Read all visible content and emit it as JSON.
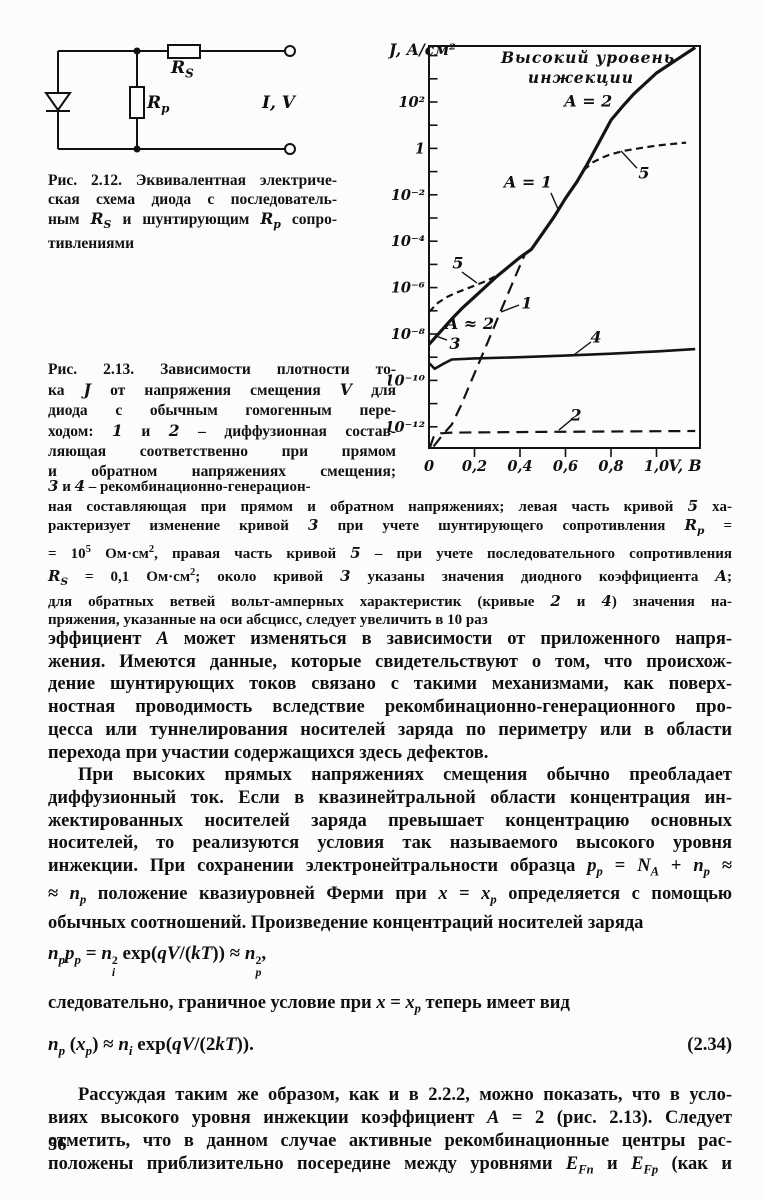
{
  "page": {
    "number": "56"
  },
  "figure_2_12": {
    "labels": {
      "rs": "R<sub>S</sub>",
      "rp": "R<sub>p</sub>",
      "iv": "I, V"
    },
    "caption_lines": [
      "Рис. 2.12. Эквивалентная электриче-",
      "ская схема диода с последователь-",
      "ным <i>R<sub>S</sub></i> и шунтирующим <i>R<sub>p</sub></i> сопро-",
      "тивлениями"
    ]
  },
  "figure_2_13": {
    "caption_lines_narrow": [
      "Рис. 2.13. Зависимости плотности то-",
      "ка <i>J</i> от напряжения смещения <i>V</i> для",
      "диода с обычным гомогенным пере-",
      "ходом: <i>1</i> и <i>2</i> – диффузионная состав-",
      "ляющая соответственно при прямом",
      "и обратном напряжениях смещения;"
    ],
    "caption_lines_wide": [
      "<i>3</i> и <i>4</i> – рекомбинационно-генерацион-",
      "ная составляющая при прямом и обратном напряжениях; левая часть кривой <i>5</i> ха-",
      "рактеризует изменение кривой <i>3</i> при учете шунтирующего сопротивления <i>R<sub>p</sub></i> =",
      "= 10<sup>5</sup> Ом·см<sup>2</sup>, правая часть кривой <i>5</i> – при учете последовательного сопротивления",
      "<i>R<sub>S</sub></i> = 0,1 Ом·см<sup>2</sup>; около кривой <i>3</i> указаны значения диодного коэффициента <i>A</i>;",
      "для обратных ветвей вольт-амперных характеристик (кривые <i>2</i> и <i>4</i>) значения на-",
      "пряжения, указанные на оси абсцисс, следует увеличить в 10 раз"
    ]
  },
  "chart_data": {
    "type": "line",
    "title_lines": [
      "Высокий уровень",
      "инжекции"
    ],
    "ylabel": "J, А/см²",
    "xlabel": "V, В",
    "xlim": [
      0,
      1.19
    ],
    "ylim_log10": [
      -12.9,
      4.4
    ],
    "y_tick_exponent_range": [
      4,
      -12
    ],
    "x_ticks": [
      {
        "v": 0.0,
        "label": "0"
      },
      {
        "v": 0.2,
        "label": "0,2"
      },
      {
        "v": 0.4,
        "label": "0,4"
      },
      {
        "v": 0.6,
        "label": "0,6"
      },
      {
        "v": 0.8,
        "label": "0,8"
      },
      {
        "v": 1.0,
        "label": "1,0"
      }
    ],
    "y_ticks": [
      {
        "exp": 2,
        "label": "10²"
      },
      {
        "exp": 0,
        "label": "1"
      },
      {
        "exp": -2,
        "label": "10⁻²"
      },
      {
        "exp": -4,
        "label": "10⁻⁴"
      },
      {
        "exp": -6,
        "label": "10⁻⁶"
      },
      {
        "exp": -8,
        "label": "10⁻⁸"
      },
      {
        "exp": -10,
        "label": "10⁻¹⁰"
      },
      {
        "exp": -12,
        "label": "10⁻¹²"
      }
    ],
    "series": [
      {
        "name": "curve-1-diffusion-forward",
        "label": "1",
        "style": "dash-long",
        "width": 2.2,
        "points": [
          [
            0.02,
            -12.85
          ],
          [
            0.06,
            -12.35
          ],
          [
            0.1,
            -11.9
          ],
          [
            0.14,
            -11.1
          ],
          [
            0.2,
            -9.7
          ],
          [
            0.26,
            -8.3
          ],
          [
            0.32,
            -6.9
          ],
          [
            0.38,
            -5.5
          ],
          [
            0.42,
            -4.6
          ]
        ]
      },
      {
        "name": "curve-2-diffusion-reverse",
        "label": "2",
        "style": "dash-long",
        "width": 2.2,
        "points": [
          [
            0.004,
            -12.9
          ],
          [
            0.02,
            -12.45
          ],
          [
            0.05,
            -12.28
          ],
          [
            0.1,
            -12.25
          ],
          [
            0.5,
            -12.22
          ],
          [
            1.17,
            -12.18
          ]
        ]
      },
      {
        "name": "curve-3-recgen-forward-main",
        "label": "3",
        "style": "solid",
        "width": 3.2,
        "points": [
          [
            0,
            -8.45
          ],
          [
            0.05,
            -7.9
          ],
          [
            0.1,
            -7.35
          ],
          [
            0.15,
            -6.85
          ],
          [
            0.2,
            -6.4
          ],
          [
            0.25,
            -5.95
          ],
          [
            0.3,
            -5.5
          ],
          [
            0.35,
            -5.1
          ],
          [
            0.4,
            -4.7
          ],
          [
            0.45,
            -4.35
          ],
          [
            0.5,
            -3.65
          ],
          [
            0.55,
            -2.95
          ],
          [
            0.6,
            -2.15
          ],
          [
            0.65,
            -1.44
          ],
          [
            0.7,
            -0.6
          ],
          [
            0.75,
            0.3
          ],
          [
            0.8,
            1.22
          ],
          [
            0.85,
            1.8
          ],
          [
            0.9,
            2.35
          ],
          [
            1.0,
            3.25
          ],
          [
            1.1,
            3.9
          ],
          [
            1.17,
            4.35
          ]
        ]
      },
      {
        "name": "curve-4-recgen-reverse",
        "label": "4",
        "style": "solid",
        "width": 2.6,
        "points": [
          [
            0,
            -9.25
          ],
          [
            0.025,
            -9.5
          ],
          [
            0.06,
            -9.3
          ],
          [
            0.1,
            -9.1
          ],
          [
            0.2,
            -9.05
          ],
          [
            0.4,
            -9.0
          ],
          [
            0.6,
            -8.93
          ],
          [
            0.8,
            -8.85
          ],
          [
            1.0,
            -8.75
          ],
          [
            1.17,
            -8.65
          ]
        ]
      },
      {
        "name": "curve-5-left-shunt",
        "label": "5",
        "style": "dash-short",
        "width": 2.2,
        "points": [
          [
            0,
            -7.05
          ],
          [
            0.04,
            -6.65
          ],
          [
            0.08,
            -6.4
          ],
          [
            0.12,
            -6.22
          ],
          [
            0.16,
            -6.07
          ],
          [
            0.2,
            -5.92
          ],
          [
            0.25,
            -5.72
          ],
          [
            0.31,
            -5.43
          ]
        ]
      },
      {
        "name": "curve-5-right-series",
        "label": "5",
        "style": "dash-short",
        "width": 2.2,
        "points": [
          [
            0.68,
            -0.93
          ],
          [
            0.72,
            -0.6
          ],
          [
            0.76,
            -0.4
          ],
          [
            0.8,
            -0.25
          ],
          [
            0.86,
            -0.1
          ],
          [
            0.92,
            0.0
          ],
          [
            1.0,
            0.12
          ],
          [
            1.06,
            0.18
          ],
          [
            1.13,
            0.25
          ]
        ]
      }
    ],
    "annotations": [
      {
        "text": "A = 2",
        "v": 0.7,
        "logj": 2.05
      },
      {
        "text": "A = 1",
        "v": 0.435,
        "logj": -1.45
      },
      {
        "text": "5",
        "v": 0.945,
        "logj": -1.06
      },
      {
        "text": "1",
        "v": 0.43,
        "logj": -6.66
      },
      {
        "text": "5",
        "v": 0.127,
        "logj": -4.94
      },
      {
        "text": "A ≈ 2",
        "v": 0.18,
        "logj": -7.55
      },
      {
        "text": "3",
        "v": 0.114,
        "logj": -8.42
      },
      {
        "text": "4",
        "v": 0.734,
        "logj": -8.13
      },
      {
        "text": "2",
        "v": 0.646,
        "logj": -11.49
      }
    ],
    "leaders": [
      {
        "from": [
          0.536,
          -1.92
        ],
        "to": [
          0.571,
          -2.7
        ]
      },
      {
        "from": [
          0.914,
          -0.85
        ],
        "to": [
          0.844,
          -0.11
        ]
      },
      {
        "from": [
          0.396,
          -6.75
        ],
        "to": [
          0.317,
          -7.05
        ]
      },
      {
        "from": [
          0.145,
          -5.33
        ],
        "to": [
          0.211,
          -5.8
        ]
      },
      {
        "from": [
          0.079,
          -8.26
        ],
        "to": [
          0.04,
          -8.12
        ]
      },
      {
        "from": [
          0.712,
          -8.34
        ],
        "to": [
          0.637,
          -8.9
        ]
      },
      {
        "from": [
          0.624,
          -11.71
        ],
        "to": [
          0.571,
          -12.14
        ]
      }
    ]
  },
  "body": {
    "para1_lines": [
      "эффициент <i>A</i> может изменяться в зависимости от приложенного напря-",
      "жения. Имеются данные, которые свидетельствуют о том, что происхож-",
      "дение шунтирующих токов связано с такими механизмами, как поверх-",
      "ностная проводимость вследствие рекомбинационно-генерационного про-",
      "цесса или туннелирования носителей заряда по периметру или в области",
      "перехода при участии содержащихся здесь дефектов."
    ],
    "para2_lines": [
      "При высоких прямых напряжениях смещения обычно преобладает",
      "диффузионный ток. Если в квазинейтральной области концентрация ин-",
      "жектированных носителей заряда превышает концентрацию основных",
      "носителей, то реализуются условия так называемого высокого уровня",
      "инжекции. При сохранении электронейтральности образца <i>p<sub>p</sub></i> = <i>N<sub>A</sub></i> + <i>n<sub>p</sub></i> ≈",
      "≈ <i>n<sub>p</sub></i> положение квазиуровней Ферми при <i>x</i> = <i>x<sub>p</sub></i> определяется с помощью",
      "обычных соотношений. Произведение концентраций носителей заряда"
    ],
    "eq1_html": "<i>n<sub>p</sub></i><i>p<sub>p</sub></i> = <i>n</i><span class=\"ss\"><span>2</span><span><i>i</i></span></span> exp(<i>qV</i>/(<i>kT</i>)) ≈ <i>n</i><span class=\"ss\"><span>2</span><span><i>p</i></span></span>,",
    "mid_line": "следовательно, граничное условие при <i>x</i> = <i>x<sub>p</sub></i> теперь имеет вид",
    "eq2_html": "<i>n<sub>p</sub></i> (<i>x<sub>p</sub></i>) ≈ <i>n<sub>i</sub></i> exp(<i>qV</i>/(2<i>kT</i>)).",
    "eq2_number": "(2.34)",
    "para3_lines": [
      "Рассуждая таким же образом, как и в 2.2.2, можно показать, что в усло-",
      "виях высокого уровня инжекции коэффициент <i>A</i> = 2 (рис. 2.13). Следует",
      "отметить, что в данном случае активные рекомбинационные центры рас-",
      "положены приблизительно посередине между уровнями <i>E<sub>Fn</sub></i> и <i>E<sub>Fp</sub></i> (как и"
    ]
  }
}
